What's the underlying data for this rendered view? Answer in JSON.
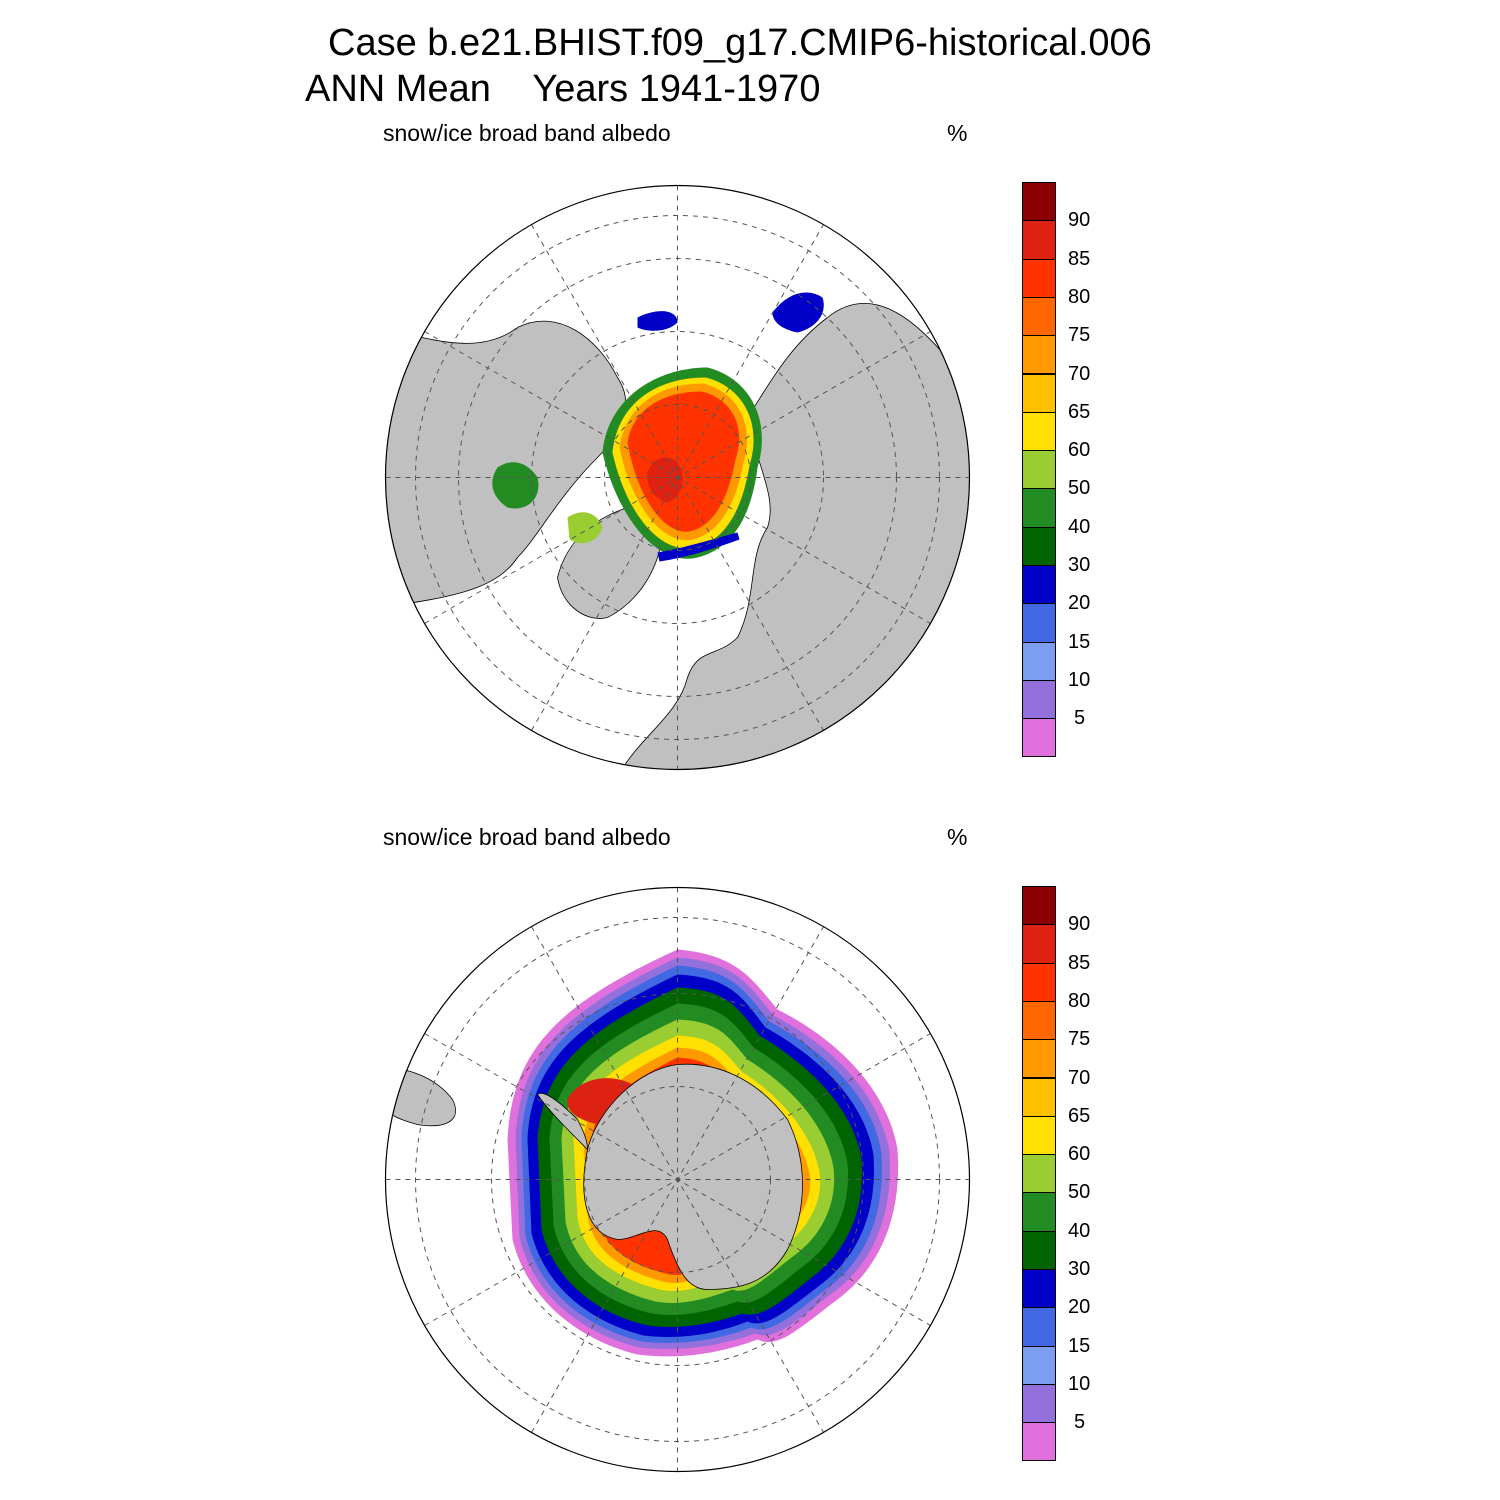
{
  "header": {
    "title_line1": "Case b.e21.BHIST.f09_g17.CMIP6-historical.006",
    "title_line2": "ANN Mean    Years 1941-1970"
  },
  "panels": [
    {
      "id": "north",
      "label": "snow/ice broad band albedo",
      "units": "%"
    },
    {
      "id": "south",
      "label": "snow/ice broad band albedo",
      "units": "%"
    }
  ],
  "colorbar": {
    "levels": [
      "5",
      "10",
      "15",
      "20",
      "30",
      "40",
      "50",
      "60",
      "65",
      "70",
      "75",
      "80",
      "85",
      "90"
    ],
    "colors_bottom_to_top": [
      "#e070dc",
      "#9370db",
      "#7b9ef0",
      "#4169e1",
      "#0000c8",
      "#006400",
      "#228b22",
      "#9acd32",
      "#ffe000",
      "#ffc000",
      "#ff9900",
      "#ff6600",
      "#ff3300",
      "#dd2211",
      "#8b0000"
    ]
  },
  "colors": {
    "land": "#c0c0c0",
    "ocean": "#ffffff",
    "grid": "#555555"
  }
}
